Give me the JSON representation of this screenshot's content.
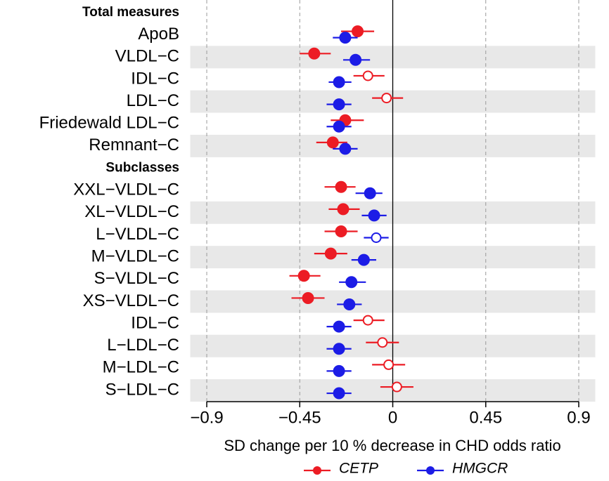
{
  "chart_data": {
    "type": "forest",
    "xlabel": "SD change per 10 % decrease in CHD odds ratio",
    "xlim": [
      -0.98,
      0.98
    ],
    "xticks": [
      {
        "value": -0.9,
        "label": "−0.9"
      },
      {
        "value": -0.45,
        "label": "−0.45"
      },
      0,
      0.45,
      0.9
    ],
    "grid": true,
    "row_shading": true,
    "legend_position": "bottom",
    "series": [
      {
        "name": "CETP",
        "color": "#ec1c24"
      },
      {
        "name": "HMGCR",
        "color": "#1c1ce6"
      }
    ],
    "sections": [
      {
        "title": "Total measures",
        "categories": [
          "ApoB",
          "VLDL−C",
          "IDL−C",
          "LDL−C",
          "Friedewald LDL−C",
          "Remnant−C"
        ],
        "series": [
          {
            "values": [
              -0.17,
              -0.38,
              -0.12,
              -0.03,
              -0.23,
              -0.29
            ],
            "lower": [
              -0.25,
              -0.45,
              -0.19,
              -0.1,
              -0.3,
              -0.37
            ],
            "upper": [
              -0.09,
              -0.3,
              -0.04,
              0.05,
              -0.14,
              -0.22
            ],
            "significant": [
              true,
              true,
              false,
              false,
              true,
              true
            ]
          },
          {
            "values": [
              -0.23,
              -0.18,
              -0.26,
              -0.26,
              -0.26,
              -0.23
            ],
            "lower": [
              -0.29,
              -0.24,
              -0.31,
              -0.32,
              -0.32,
              -0.29
            ],
            "upper": [
              -0.17,
              -0.11,
              -0.2,
              -0.2,
              -0.2,
              -0.17
            ],
            "significant": [
              true,
              true,
              true,
              true,
              true,
              true
            ]
          }
        ]
      },
      {
        "title": "Subclasses",
        "categories": [
          "XXL−VLDL−C",
          "XL−VLDL−C",
          "L−VLDL−C",
          "M−VLDL−C",
          "S−VLDL−C",
          "XS−VLDL−C",
          "IDL−C",
          "L−LDL−C",
          "M−LDL−C",
          "S−LDL−C"
        ],
        "series": [
          {
            "values": [
              -0.25,
              -0.24,
              -0.25,
              -0.3,
              -0.43,
              -0.41,
              -0.12,
              -0.05,
              -0.02,
              0.02
            ],
            "lower": [
              -0.33,
              -0.31,
              -0.33,
              -0.38,
              -0.5,
              -0.49,
              -0.19,
              -0.13,
              -0.1,
              -0.06
            ],
            "upper": [
              -0.18,
              -0.16,
              -0.17,
              -0.22,
              -0.35,
              -0.33,
              -0.04,
              0.03,
              0.06,
              0.1
            ],
            "significant": [
              true,
              true,
              true,
              true,
              true,
              true,
              false,
              false,
              false,
              false
            ]
          },
          {
            "values": [
              -0.11,
              -0.09,
              -0.08,
              -0.14,
              -0.2,
              -0.21,
              -0.26,
              -0.26,
              -0.26,
              -0.26
            ],
            "lower": [
              -0.18,
              -0.15,
              -0.14,
              -0.2,
              -0.26,
              -0.27,
              -0.32,
              -0.32,
              -0.32,
              -0.32
            ],
            "upper": [
              -0.05,
              -0.03,
              -0.02,
              -0.08,
              -0.13,
              -0.15,
              -0.2,
              -0.2,
              -0.2,
              -0.2
            ],
            "significant": [
              true,
              true,
              false,
              true,
              true,
              true,
              true,
              true,
              true,
              true
            ]
          }
        ]
      }
    ]
  }
}
